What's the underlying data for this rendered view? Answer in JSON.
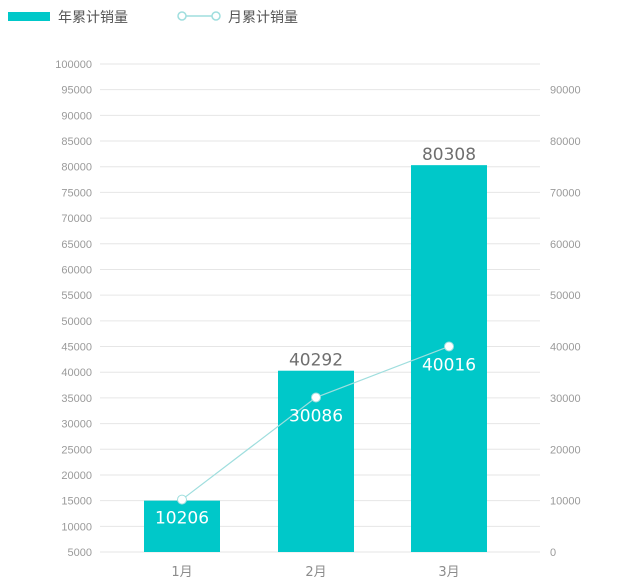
{
  "legend": {
    "bar_label": "年累计销量",
    "line_label": "月累计销量"
  },
  "colors": {
    "bar": "#00c8c9",
    "line": "#9fdede",
    "grid": "#e6e6e6",
    "tick": "#9a9a9a"
  },
  "chart_data": {
    "type": "bar",
    "categories": [
      "1月",
      "2月",
      "3月"
    ],
    "series": [
      {
        "name": "年累计销量",
        "type": "bar",
        "axis": "left",
        "values": [
          15000,
          40292,
          80308
        ],
        "labels": [
          "",
          "40292",
          "80308"
        ]
      },
      {
        "name": "月累计销量",
        "type": "line",
        "axis": "right",
        "values": [
          10206,
          30086,
          40016
        ],
        "labels": [
          "10206",
          "30086",
          "40016"
        ]
      }
    ],
    "left_axis": {
      "ylim": [
        5000,
        100000
      ],
      "ticks": [
        5000,
        10000,
        15000,
        20000,
        25000,
        30000,
        35000,
        40000,
        45000,
        50000,
        55000,
        60000,
        65000,
        70000,
        75000,
        80000,
        85000,
        90000,
        95000,
        100000
      ]
    },
    "right_axis": {
      "ylim": [
        0,
        95000
      ],
      "ticks": [
        0,
        10000,
        20000,
        30000,
        40000,
        50000,
        60000,
        70000,
        80000,
        90000
      ]
    },
    "grid": true,
    "legend_position": "top-left"
  }
}
